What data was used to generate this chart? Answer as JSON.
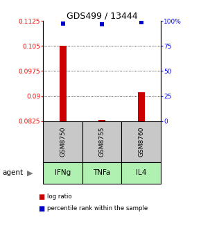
{
  "title": "GDS499 / 13444",
  "samples": [
    "GSM8750",
    "GSM8755",
    "GSM8760"
  ],
  "agents": [
    "IFNg",
    "TNFa",
    "IL4"
  ],
  "log_ratios": [
    0.105,
    0.08295,
    0.0912
  ],
  "baseline": 0.0825,
  "percentile_ranks": [
    97.5,
    96.5,
    98.5
  ],
  "ylim_left": [
    0.0825,
    0.1125
  ],
  "ylim_right": [
    0,
    100
  ],
  "yticks_left": [
    0.0825,
    0.09,
    0.0975,
    0.105,
    0.1125
  ],
  "ytick_labels_left": [
    "0.0825",
    "0.09",
    "0.0975",
    "0.105",
    "0.1125"
  ],
  "yticks_right": [
    0,
    25,
    50,
    75,
    100
  ],
  "ytick_labels_right": [
    "0",
    "25",
    "50",
    "75",
    "100%"
  ],
  "bar_color": "#cc0000",
  "dot_color": "#0000cc",
  "sample_box_color": "#c8c8c8",
  "agent_box_color": "#b0f0b0",
  "legend_items": [
    "log ratio",
    "percentile rank within the sample"
  ],
  "legend_colors": [
    "#cc0000",
    "#0000cc"
  ],
  "agent_label": "agent",
  "bar_width": 0.18,
  "dot_size": 5
}
